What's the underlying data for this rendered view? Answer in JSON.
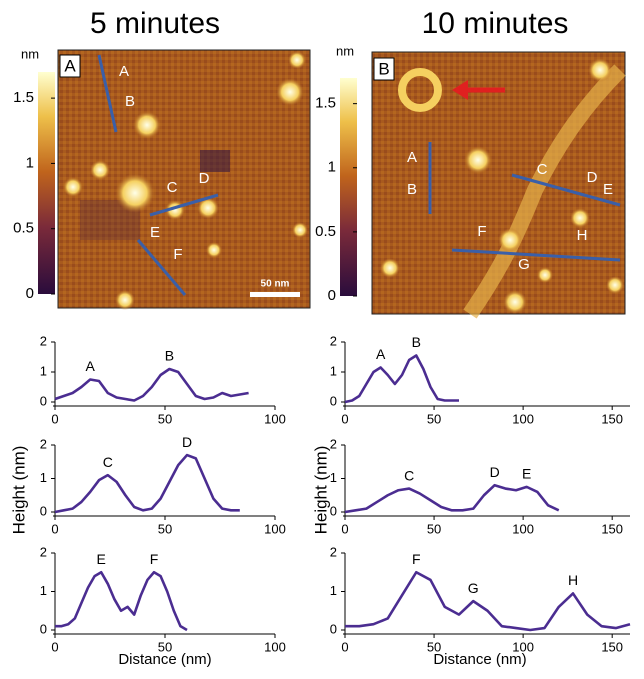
{
  "titles": [
    "5 minutes",
    "10 minutes"
  ],
  "images": [
    {
      "label": "A",
      "colorbar": {
        "unit": "nm",
        "lim": [
          0,
          1.7
        ],
        "ticks": [
          0,
          0.5,
          1,
          1.5
        ]
      },
      "scale_bar": "50 nm",
      "markers": [
        "A",
        "B",
        "C",
        "D",
        "E",
        "F"
      ]
    },
    {
      "label": "B",
      "colorbar": {
        "unit": "nm",
        "lim": [
          0,
          1.7
        ],
        "ticks": [
          0,
          0.5,
          1,
          1.5
        ]
      },
      "markers": [
        "A",
        "B",
        "C",
        "D",
        "E",
        "F",
        "G",
        "H"
      ]
    }
  ],
  "y_label": "Height (nm)",
  "x_label": "Distance (nm)",
  "chart_data": [
    {
      "type": "line",
      "color": "#4b2d91",
      "xlim": [
        0,
        100
      ],
      "ylim": [
        0,
        2
      ],
      "xticks": [
        0,
        50,
        100
      ],
      "yticks": [
        0,
        1,
        2
      ],
      "x": [
        0,
        4,
        8,
        12,
        16,
        20,
        24,
        28,
        32,
        36,
        40,
        44,
        48,
        52,
        56,
        60,
        64,
        68,
        72,
        76,
        80,
        84,
        88
      ],
      "values": [
        0.1,
        0.2,
        0.3,
        0.5,
        0.75,
        0.7,
        0.3,
        0.15,
        0.1,
        0.05,
        0.2,
        0.5,
        0.9,
        1.1,
        1.0,
        0.6,
        0.2,
        0.1,
        0.15,
        0.3,
        0.2,
        0.25,
        0.3
      ],
      "annotations": [
        {
          "text": "A",
          "x": 16,
          "y": 0.75
        },
        {
          "text": "B",
          "x": 52,
          "y": 1.1
        }
      ]
    },
    {
      "type": "line",
      "color": "#4b2d91",
      "xlim": [
        0,
        160
      ],
      "ylim": [
        0,
        2
      ],
      "xticks": [
        0,
        50,
        100,
        150
      ],
      "yticks": [
        0,
        1,
        2
      ],
      "x": [
        0,
        4,
        8,
        12,
        16,
        20,
        24,
        28,
        32,
        36,
        40,
        44,
        48,
        52,
        56,
        60,
        64
      ],
      "values": [
        0,
        0.05,
        0.2,
        0.6,
        1.0,
        1.15,
        0.9,
        0.6,
        0.9,
        1.4,
        1.55,
        1.1,
        0.5,
        0.1,
        0.05,
        0.05,
        0.05
      ],
      "annotations": [
        {
          "text": "A",
          "x": 20,
          "y": 1.15
        },
        {
          "text": "B",
          "x": 40,
          "y": 1.55
        }
      ]
    },
    {
      "type": "line",
      "color": "#4b2d91",
      "xlim": [
        0,
        100
      ],
      "ylim": [
        0,
        2
      ],
      "xticks": [
        0,
        50,
        100
      ],
      "yticks": [
        0,
        1,
        2
      ],
      "x": [
        0,
        4,
        8,
        12,
        16,
        20,
        24,
        28,
        32,
        36,
        40,
        44,
        48,
        52,
        56,
        60,
        64,
        68,
        72,
        76,
        80,
        84
      ],
      "values": [
        0,
        0.05,
        0.1,
        0.3,
        0.6,
        0.95,
        1.1,
        0.9,
        0.5,
        0.15,
        0.05,
        0.1,
        0.4,
        0.9,
        1.4,
        1.7,
        1.6,
        1.0,
        0.4,
        0.1,
        0.05,
        0.05
      ],
      "annotations": [
        {
          "text": "C",
          "x": 24,
          "y": 1.1
        },
        {
          "text": "D",
          "x": 60,
          "y": 1.7
        }
      ]
    },
    {
      "type": "line",
      "color": "#4b2d91",
      "xlim": [
        0,
        160
      ],
      "ylim": [
        0,
        2
      ],
      "xticks": [
        0,
        50,
        100,
        150
      ],
      "yticks": [
        0,
        1,
        2
      ],
      "x": [
        0,
        6,
        12,
        18,
        24,
        30,
        36,
        42,
        48,
        54,
        60,
        66,
        72,
        78,
        84,
        90,
        96,
        102,
        108,
        114,
        120
      ],
      "values": [
        0,
        0.05,
        0.1,
        0.3,
        0.5,
        0.65,
        0.7,
        0.55,
        0.35,
        0.15,
        0.05,
        0.05,
        0.1,
        0.5,
        0.8,
        0.7,
        0.65,
        0.75,
        0.6,
        0.2,
        0.05
      ],
      "annotations": [
        {
          "text": "C",
          "x": 36,
          "y": 0.7
        },
        {
          "text": "D",
          "x": 84,
          "y": 0.8
        },
        {
          "text": "E",
          "x": 102,
          "y": 0.75
        }
      ]
    },
    {
      "type": "line",
      "color": "#4b2d91",
      "xlim": [
        0,
        100
      ],
      "ylim": [
        0,
        2
      ],
      "xticks": [
        0,
        50,
        100
      ],
      "yticks": [
        0,
        1,
        2
      ],
      "x": [
        0,
        3,
        6,
        9,
        12,
        15,
        18,
        21,
        24,
        27,
        30,
        33,
        36,
        39,
        42,
        45,
        48,
        51,
        54,
        57,
        60
      ],
      "values": [
        0.1,
        0.1,
        0.15,
        0.3,
        0.7,
        1.1,
        1.4,
        1.5,
        1.2,
        0.8,
        0.5,
        0.6,
        0.4,
        0.9,
        1.3,
        1.5,
        1.4,
        1.0,
        0.5,
        0.1,
        0
      ],
      "annotations": [
        {
          "text": "E",
          "x": 21,
          "y": 1.5
        },
        {
          "text": "F",
          "x": 45,
          "y": 1.5
        }
      ]
    },
    {
      "type": "line",
      "color": "#4b2d91",
      "xlim": [
        0,
        160
      ],
      "ylim": [
        0,
        2
      ],
      "xticks": [
        0,
        50,
        100,
        150
      ],
      "yticks": [
        0,
        1,
        2
      ],
      "x": [
        0,
        8,
        16,
        24,
        32,
        40,
        48,
        56,
        64,
        72,
        80,
        88,
        96,
        104,
        112,
        120,
        128,
        136,
        144,
        152,
        160
      ],
      "values": [
        0.1,
        0.1,
        0.15,
        0.3,
        0.9,
        1.5,
        1.3,
        0.6,
        0.4,
        0.75,
        0.5,
        0.1,
        0.05,
        0,
        0.05,
        0.6,
        0.95,
        0.4,
        0.1,
        0.05,
        0.15
      ],
      "annotations": [
        {
          "text": "F",
          "x": 40,
          "y": 1.5
        },
        {
          "text": "G",
          "x": 72,
          "y": 0.75
        },
        {
          "text": "H",
          "x": 128,
          "y": 0.95
        }
      ]
    }
  ]
}
